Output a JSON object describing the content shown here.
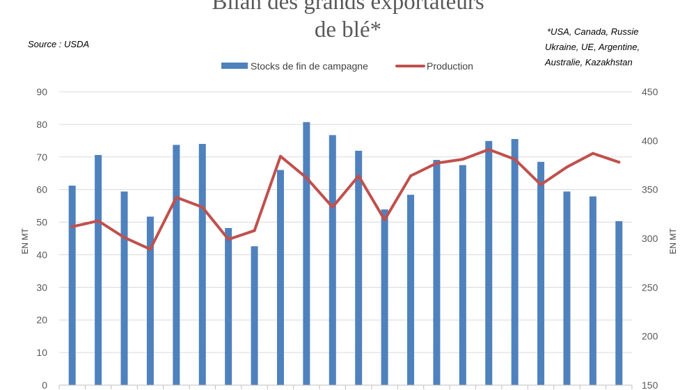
{
  "chart_data": {
    "type": "bar",
    "title_line1": "Bilan des grands exportateurs",
    "title_line2": "de blé*",
    "source": "Source : USDA",
    "footnote_lines": [
      "*USA, Canada, Russie",
      "Ukraine, UE, Argentine,",
      "Australie, Kazakhstan"
    ],
    "ylabel_left": "EN MT",
    "ylabel_right": "EN MT",
    "y_left": {
      "min": 0,
      "max": 90,
      "ticks": [
        "0",
        "10",
        "20",
        "30",
        "40",
        "50",
        "60",
        "70",
        "80",
        "90"
      ]
    },
    "y_right": {
      "min": 150,
      "max": 450,
      "ticks": [
        "150",
        "200",
        "250",
        "300",
        "350",
        "400",
        "450"
      ]
    },
    "grid": true,
    "legend_position": "top-center",
    "colors": {
      "bars": "#4f81bd",
      "line": "#c0504d",
      "grid": "#d9d9d9",
      "axis": "#bfbfbf"
    },
    "series": [
      {
        "name": "Stocks de fin de campagne",
        "type": "bar",
        "axis": "left",
        "values": [
          61.2,
          70.6,
          59.4,
          51.7,
          73.7,
          74.0,
          48.2,
          42.6,
          66.0,
          80.7,
          76.7,
          71.9,
          53.9,
          58.4,
          69.1,
          67.5,
          74.9,
          75.5,
          68.5,
          59.4,
          57.9,
          50.3
        ]
      },
      {
        "name": "Production",
        "type": "line",
        "axis": "right",
        "values": [
          312,
          318,
          301,
          289,
          342,
          332,
          299,
          308,
          384,
          362,
          332,
          364,
          319,
          364,
          377,
          381,
          391,
          381,
          355,
          373,
          387,
          378
        ]
      }
    ]
  }
}
